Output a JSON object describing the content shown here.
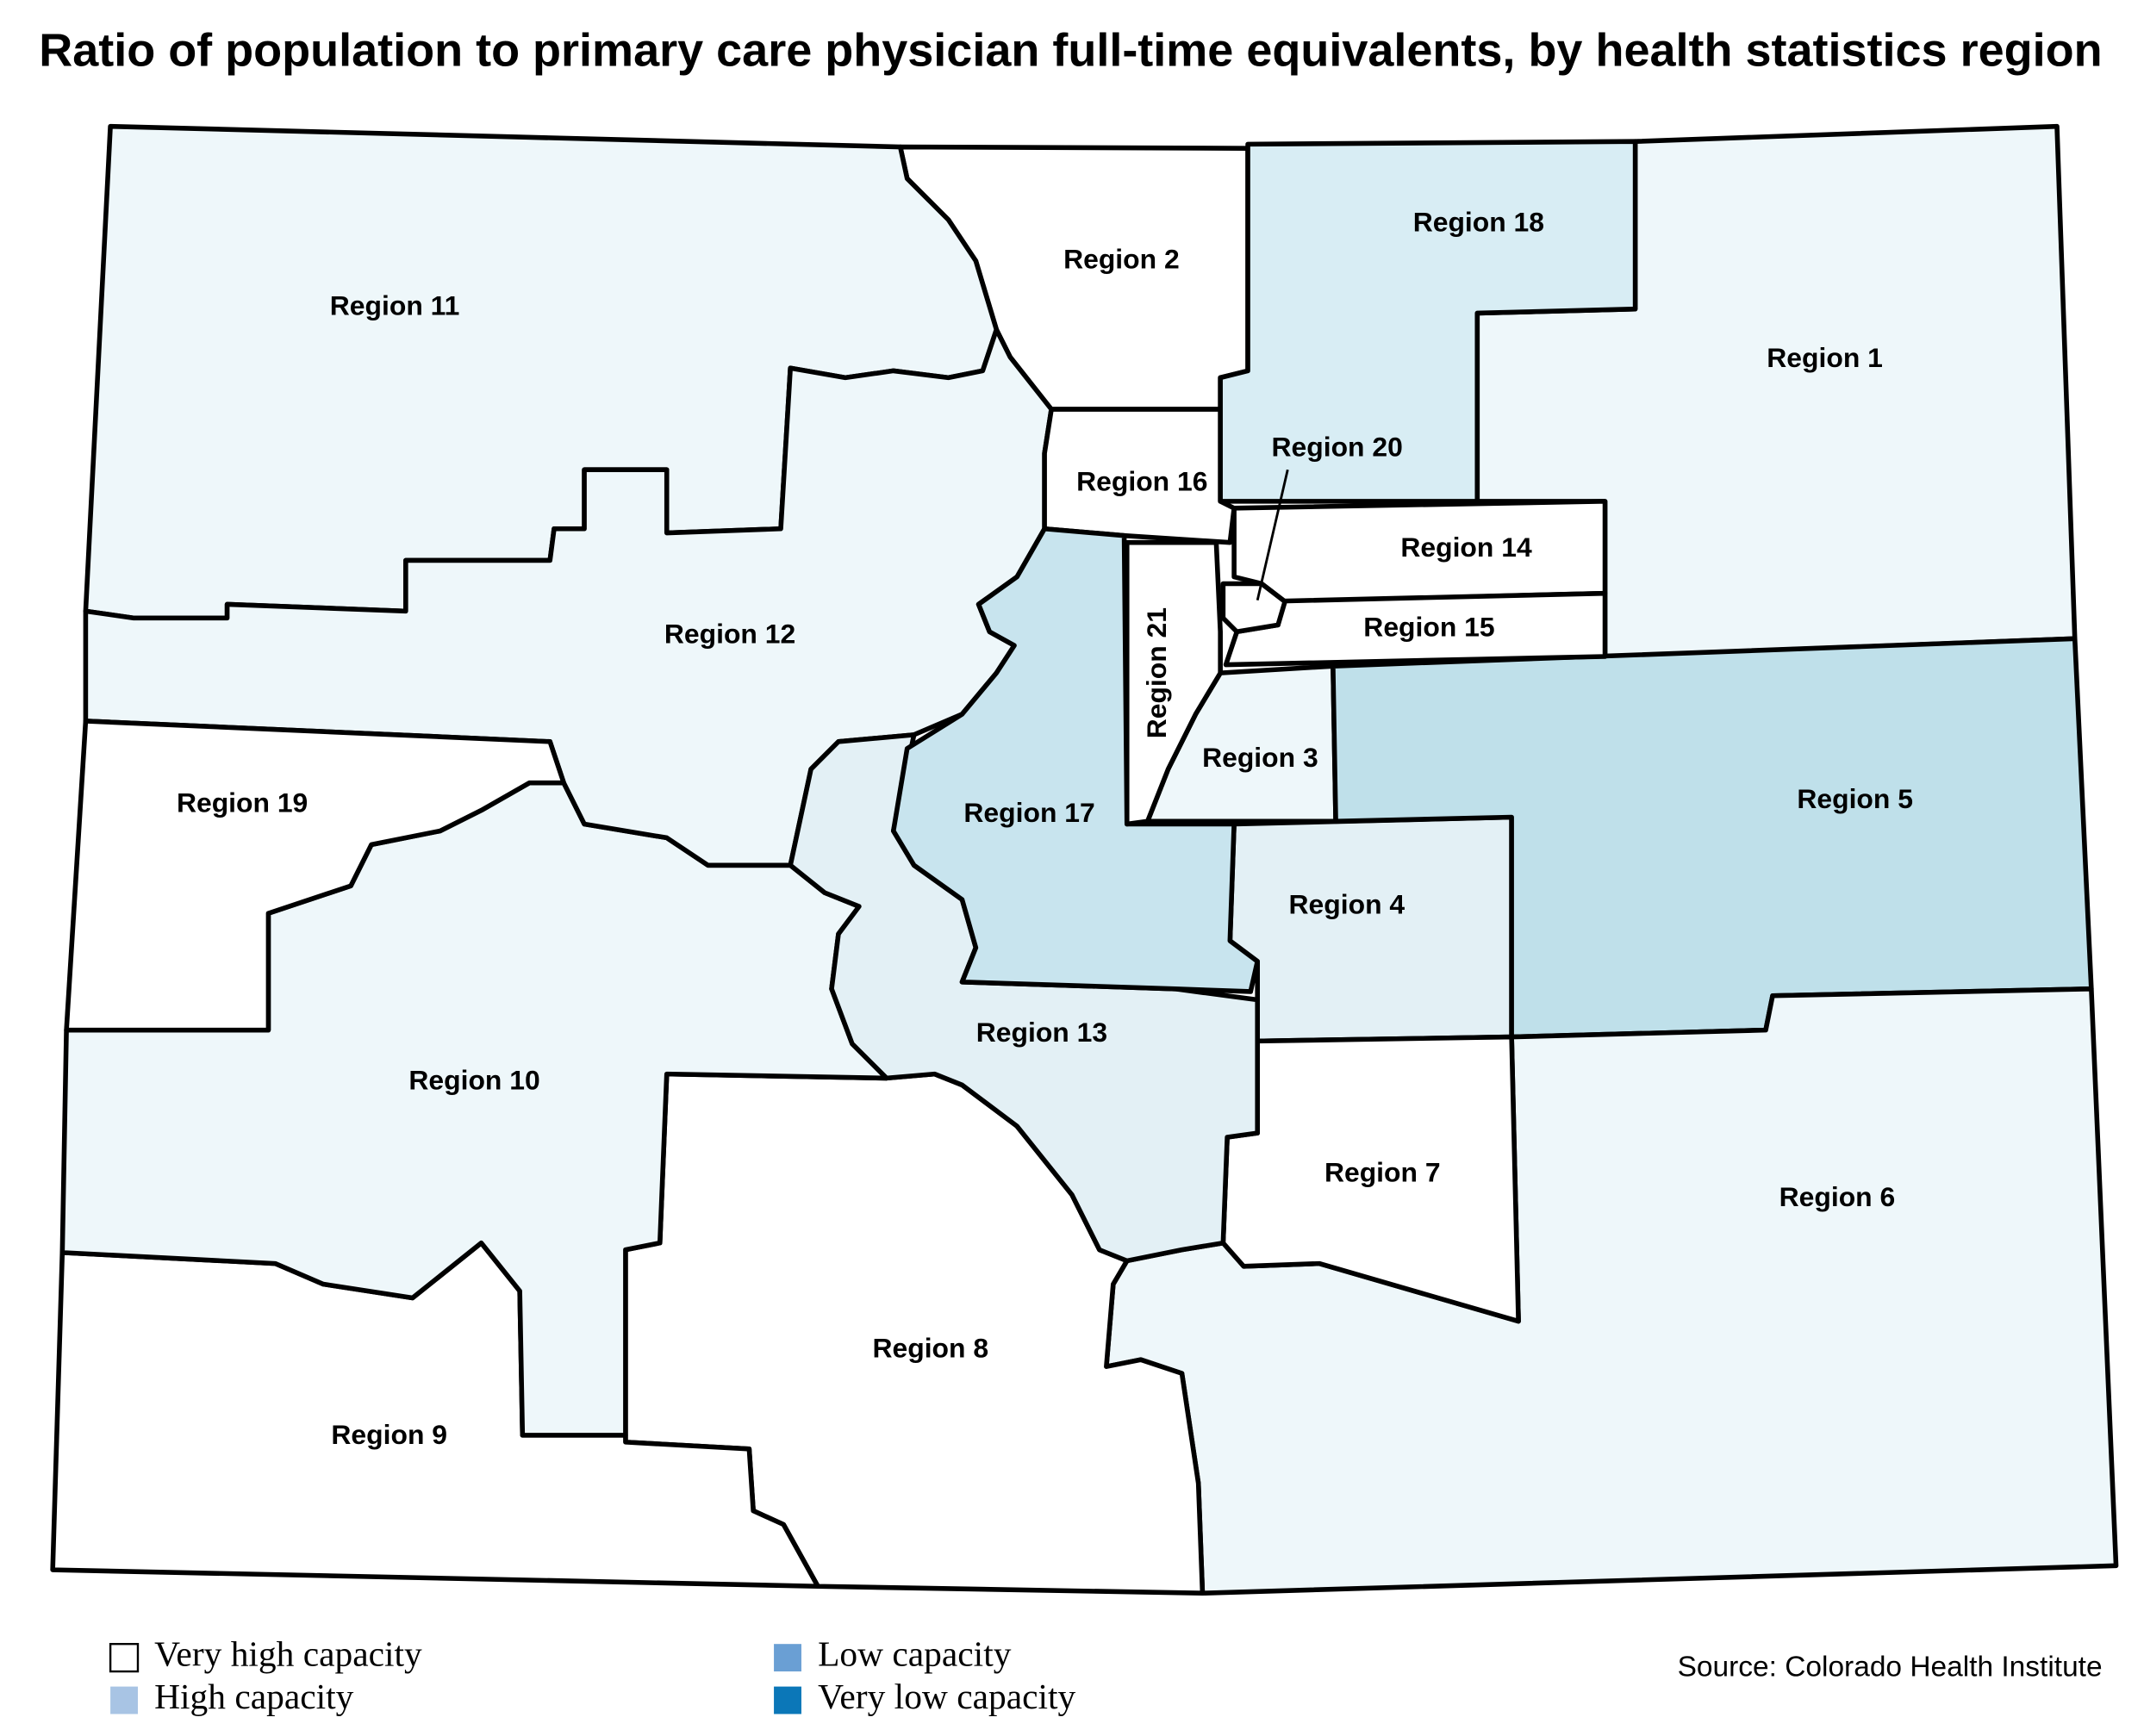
{
  "title": "Ratio of population to primary care physician full-time equivalents, by health statistics region",
  "regions": [
    {
      "label": "Region 1",
      "fill": "#eef7fa"
    },
    {
      "label": "Region 2",
      "fill": "#ffffff"
    },
    {
      "label": "Region 3",
      "fill": "#eef7fa"
    },
    {
      "label": "Region 4",
      "fill": "#e3f0f5"
    },
    {
      "label": "Region 5",
      "fill": "#bfe0ea"
    },
    {
      "label": "Region 6",
      "fill": "#eef7fa"
    },
    {
      "label": "Region 7",
      "fill": "#ffffff"
    },
    {
      "label": "Region 8",
      "fill": "#ffffff"
    },
    {
      "label": "Region 9",
      "fill": "#ffffff"
    },
    {
      "label": "Region 10",
      "fill": "#eef7fa"
    },
    {
      "label": "Region 11",
      "fill": "#eef7fa"
    },
    {
      "label": "Region 12",
      "fill": "#eef7fa"
    },
    {
      "label": "Region 13",
      "fill": "#e3f0f5"
    },
    {
      "label": "Region 14",
      "fill": "#ffffff"
    },
    {
      "label": "Region 15",
      "fill": "#ffffff"
    },
    {
      "label": "Region 16",
      "fill": "#ffffff"
    },
    {
      "label": "Region 17",
      "fill": "#c8e4ee"
    },
    {
      "label": "Region 18",
      "fill": "#d8edf4"
    },
    {
      "label": "Region 19",
      "fill": "#ffffff"
    },
    {
      "label": "Region 20",
      "fill": "#ffffff"
    },
    {
      "label": "Region 21",
      "fill": "#ffffff"
    }
  ],
  "legend": [
    {
      "label": "Very high capacity",
      "color": "#ffffff"
    },
    {
      "label": "High capacity",
      "color": "#a8c4e4"
    },
    {
      "label": "Low capacity",
      "color": "#6a9fd4"
    },
    {
      "label": "Very low capacity",
      "color": "#0b77b8"
    }
  ],
  "source": "Source: Colorado Health Institute"
}
